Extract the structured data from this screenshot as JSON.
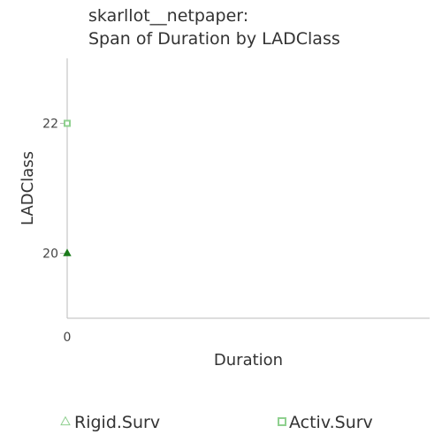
{
  "chart_data": {
    "type": "scatter",
    "title": [
      "skarllot__netpaper:",
      "Span of Duration by LADClass"
    ],
    "xlabel": "Duration",
    "ylabel": "LADClass",
    "xlim": [
      0,
      1
    ],
    "ylim": [
      19,
      23
    ],
    "x_ticks": [
      0
    ],
    "y_ticks": [
      20,
      22
    ],
    "grid": false,
    "legend_position": "bottom",
    "series": [
      {
        "name": "Rigid.Surv",
        "marker": "triangle",
        "color": "#1a7a1a",
        "legend_color": "#8fcf8f",
        "points": [
          {
            "x": 0,
            "y": 20
          }
        ]
      },
      {
        "name": "Activ.Surv",
        "marker": "square",
        "color": "#8fd08f",
        "legend_color": "#8fd08f",
        "points": [
          {
            "x": 0,
            "y": 22
          }
        ]
      }
    ]
  },
  "colors": {
    "axis": "#bbbbbb",
    "text": "#333333"
  }
}
